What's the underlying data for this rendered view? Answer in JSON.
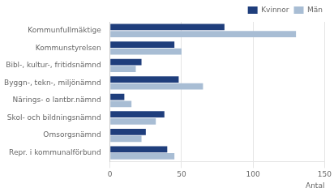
{
  "chart_data": {
    "type": "bar",
    "orientation": "horizontal",
    "categories": [
      "Kommunfullmäktige",
      "Kommunstyrelsen",
      "Bibl-, kultur-, fritidsnämnd",
      "Byggn-, tekn-, miljönämnd",
      "Närings- o lantbr.nämnd",
      "Skol- och bildningsnämnd",
      "Omsorgsnämnd",
      "Repr. i kommunalförbund"
    ],
    "series": [
      {
        "name": "Kvinnor",
        "color": "#1F3E7C",
        "values": [
          80,
          45,
          22,
          48,
          10,
          38,
          25,
          40
        ]
      },
      {
        "name": "Män",
        "color": "#A8BDD4",
        "values": [
          130,
          50,
          18,
          65,
          15,
          32,
          22,
          45
        ]
      }
    ],
    "x_label": "Antal",
    "xlim": [
      0,
      150
    ],
    "xticks": [
      0,
      50,
      100,
      150
    ],
    "grid": true,
    "legend": "upper right"
  }
}
